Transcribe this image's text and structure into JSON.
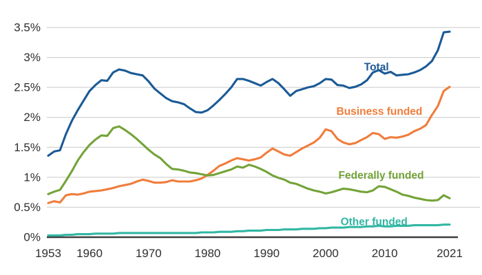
{
  "chart_data": {
    "type": "line",
    "title": "",
    "xlabel": "",
    "ylabel": "",
    "xlim": [
      1953,
      2021
    ],
    "ylim": [
      0,
      3.5
    ],
    "grid": "horizontal",
    "legend_position": "inline-labels",
    "years": [
      1953,
      1954,
      1955,
      1956,
      1957,
      1958,
      1959,
      1960,
      1961,
      1962,
      1963,
      1964,
      1965,
      1966,
      1967,
      1968,
      1969,
      1970,
      1971,
      1972,
      1973,
      1974,
      1975,
      1976,
      1977,
      1978,
      1979,
      1980,
      1981,
      1982,
      1983,
      1984,
      1985,
      1986,
      1987,
      1988,
      1989,
      1990,
      1991,
      1992,
      1993,
      1994,
      1995,
      1996,
      1997,
      1998,
      1999,
      2000,
      2001,
      2002,
      2003,
      2004,
      2005,
      2006,
      2007,
      2008,
      2009,
      2010,
      2011,
      2012,
      2013,
      2014,
      2015,
      2016,
      2017,
      2018,
      2019,
      2020,
      2021
    ],
    "y_ticks": [
      {
        "value": 0.0,
        "label": "0%"
      },
      {
        "value": 0.5,
        "label": "0.5%"
      },
      {
        "value": 1.0,
        "label": "1%"
      },
      {
        "value": 1.5,
        "label": "1.5%"
      },
      {
        "value": 2.0,
        "label": "2%"
      },
      {
        "value": 2.5,
        "label": "2.5%"
      },
      {
        "value": 3.0,
        "label": "3%"
      },
      {
        "value": 3.5,
        "label": "3.5%"
      }
    ],
    "x_ticks": [
      {
        "value": 1953,
        "label": "1953"
      },
      {
        "value": 1960,
        "label": "1960"
      },
      {
        "value": 1970,
        "label": "1970"
      },
      {
        "value": 1980,
        "label": "1980"
      },
      {
        "value": 1990,
        "label": "1990"
      },
      {
        "value": 2000,
        "label": "2000"
      },
      {
        "value": 2010,
        "label": "2010"
      },
      {
        "value": 2021,
        "label": "2021"
      }
    ],
    "series": [
      {
        "name": "Total",
        "color": "#1a5a96",
        "label_anchor": {
          "year": 2008.6,
          "value": 2.84
        },
        "values": [
          1.36,
          1.43,
          1.45,
          1.72,
          1.94,
          2.12,
          2.28,
          2.44,
          2.54,
          2.62,
          2.61,
          2.75,
          2.8,
          2.78,
          2.74,
          2.72,
          2.7,
          2.6,
          2.48,
          2.4,
          2.32,
          2.27,
          2.25,
          2.22,
          2.15,
          2.09,
          2.08,
          2.12,
          2.2,
          2.29,
          2.39,
          2.5,
          2.64,
          2.64,
          2.61,
          2.57,
          2.53,
          2.59,
          2.64,
          2.57,
          2.47,
          2.36,
          2.44,
          2.47,
          2.5,
          2.52,
          2.57,
          2.64,
          2.63,
          2.54,
          2.53,
          2.49,
          2.51,
          2.55,
          2.62,
          2.75,
          2.79,
          2.73,
          2.76,
          2.7,
          2.71,
          2.72,
          2.75,
          2.79,
          2.85,
          2.94,
          3.12,
          3.42,
          3.43
        ]
      },
      {
        "name": "Business funded",
        "color": "#f07c3b",
        "label_anchor": {
          "year": 2009.1,
          "value": 2.1
        },
        "values": [
          0.57,
          0.6,
          0.58,
          0.7,
          0.72,
          0.71,
          0.73,
          0.76,
          0.77,
          0.78,
          0.8,
          0.82,
          0.85,
          0.87,
          0.89,
          0.93,
          0.96,
          0.94,
          0.91,
          0.91,
          0.92,
          0.95,
          0.93,
          0.93,
          0.93,
          0.95,
          0.98,
          1.04,
          1.11,
          1.19,
          1.23,
          1.28,
          1.32,
          1.3,
          1.28,
          1.3,
          1.33,
          1.41,
          1.48,
          1.43,
          1.38,
          1.36,
          1.42,
          1.48,
          1.53,
          1.58,
          1.66,
          1.8,
          1.77,
          1.64,
          1.58,
          1.55,
          1.57,
          1.62,
          1.67,
          1.74,
          1.72,
          1.64,
          1.67,
          1.66,
          1.68,
          1.71,
          1.77,
          1.81,
          1.87,
          2.04,
          2.19,
          2.44,
          2.51
        ]
      },
      {
        "name": "Federally funded",
        "color": "#73a338",
        "label_anchor": {
          "year": 2009.4,
          "value": 1.03
        },
        "values": [
          0.72,
          0.76,
          0.79,
          0.94,
          1.1,
          1.28,
          1.42,
          1.54,
          1.63,
          1.7,
          1.69,
          1.82,
          1.85,
          1.79,
          1.72,
          1.64,
          1.55,
          1.46,
          1.38,
          1.32,
          1.22,
          1.14,
          1.13,
          1.11,
          1.08,
          1.07,
          1.05,
          1.03,
          1.04,
          1.07,
          1.1,
          1.13,
          1.18,
          1.16,
          1.21,
          1.18,
          1.14,
          1.09,
          1.03,
          0.99,
          0.96,
          0.91,
          0.89,
          0.85,
          0.81,
          0.78,
          0.76,
          0.73,
          0.75,
          0.78,
          0.81,
          0.8,
          0.78,
          0.76,
          0.75,
          0.78,
          0.85,
          0.84,
          0.8,
          0.76,
          0.71,
          0.69,
          0.66,
          0.64,
          0.62,
          0.61,
          0.62,
          0.7,
          0.65
        ]
      },
      {
        "name": "Other funded",
        "color": "#31b7a3",
        "label_anchor": {
          "year": 2008.2,
          "value": 0.26
        },
        "values": [
          0.03,
          0.03,
          0.03,
          0.04,
          0.04,
          0.05,
          0.05,
          0.05,
          0.06,
          0.06,
          0.06,
          0.06,
          0.07,
          0.07,
          0.07,
          0.07,
          0.07,
          0.07,
          0.07,
          0.07,
          0.07,
          0.07,
          0.07,
          0.07,
          0.07,
          0.07,
          0.08,
          0.08,
          0.08,
          0.09,
          0.09,
          0.09,
          0.1,
          0.1,
          0.11,
          0.11,
          0.11,
          0.12,
          0.12,
          0.12,
          0.13,
          0.13,
          0.13,
          0.14,
          0.14,
          0.14,
          0.15,
          0.15,
          0.16,
          0.16,
          0.16,
          0.17,
          0.17,
          0.17,
          0.18,
          0.18,
          0.19,
          0.18,
          0.18,
          0.19,
          0.19,
          0.19,
          0.2,
          0.2,
          0.2,
          0.2,
          0.2,
          0.21,
          0.21
        ]
      }
    ]
  },
  "colors": {
    "background": "#ffffff",
    "gridline": "#c9c9c9",
    "axis_line": "#3f3f3f",
    "tick_text": "#2e2e2e"
  }
}
